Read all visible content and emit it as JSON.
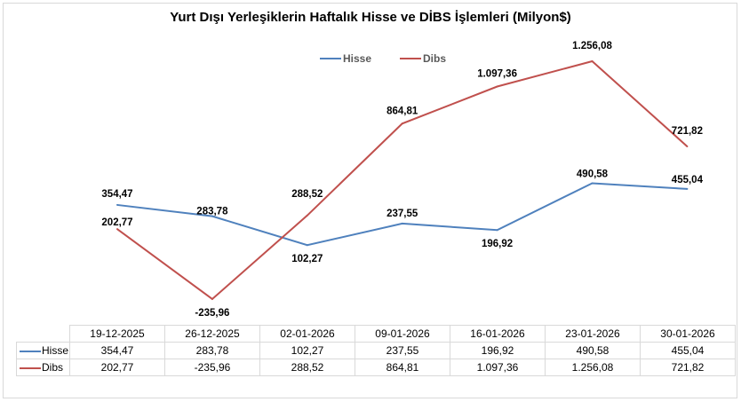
{
  "chart_data": {
    "type": "line",
    "title": "Yurt Dışı Yerleşiklerin Haftalık Hisse ve DİBS İşlemleri (Milyon$)",
    "categories": [
      "19-12-2025",
      "26-12-2025",
      "02-01-2026",
      "09-01-2026",
      "16-01-2026",
      "23-01-2026",
      "30-01-2026"
    ],
    "series": [
      {
        "name": "Hisse",
        "color": "#4f81bd",
        "values": [
          354.47,
          283.78,
          102.27,
          237.55,
          196.92,
          490.58,
          455.04
        ],
        "labels": [
          "354,47",
          "283,78",
          "102,27",
          "237,55",
          "196,92",
          "490,58",
          "455,04"
        ]
      },
      {
        "name": "Dibs",
        "color": "#c0504d",
        "values": [
          202.77,
          -235.96,
          288.52,
          864.81,
          1097.36,
          1256.08,
          721.82
        ],
        "labels": [
          "202,77",
          "-235,96",
          "288,52",
          "864,81",
          "1.097,36",
          "1.256,08",
          "721,82"
        ]
      }
    ],
    "legend": "top-center",
    "data_table": true,
    "grid": false
  }
}
